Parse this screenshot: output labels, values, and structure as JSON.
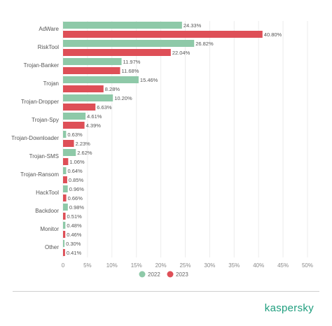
{
  "brand": "kaspersky",
  "chart_data": {
    "type": "bar",
    "orientation": "horizontal",
    "categories": [
      "AdWare",
      "RiskTool",
      "Trojan-Banker",
      "Trojan",
      "Trojan-Dropper",
      "Trojan-Spy",
      "Trojan-Downloader",
      "Trojan-SMS",
      "Trojan-Ransom",
      "HackTool",
      "Backdoor",
      "Monitor",
      "Other"
    ],
    "series": [
      {
        "name": "2022",
        "color": "#8ec9a8",
        "values": [
          24.33,
          26.82,
          11.97,
          15.46,
          10.2,
          4.61,
          0.63,
          2.62,
          0.64,
          0.96,
          0.98,
          0.48,
          0.3
        ],
        "labels": [
          "24.33%",
          "26.82%",
          "11.97%",
          "15.46%",
          "10.20%",
          "4.61%",
          "0.63%",
          "2.62%",
          "0.64%",
          "0.96%",
          "0.98%",
          "0.48%",
          "0.30%"
        ]
      },
      {
        "name": "2023",
        "color": "#de4f57",
        "values": [
          40.8,
          22.04,
          11.68,
          8.28,
          6.63,
          4.39,
          2.23,
          1.06,
          0.85,
          0.66,
          0.51,
          0.46,
          0.41
        ],
        "labels": [
          "40.80%",
          "22.04%",
          "11.68%",
          "8.28%",
          "6.63%",
          "4.39%",
          "2.23%",
          "1.06%",
          "0.85%",
          "0.66%",
          "0.51%",
          "0.46%",
          "0.41%"
        ]
      }
    ],
    "xlim": [
      0,
      50
    ],
    "x_ticks": [
      "0",
      "5%",
      "10%",
      "15%",
      "20%",
      "25%",
      "30%",
      "35%",
      "40%",
      "45%",
      "50%"
    ],
    "title": "",
    "xlabel": "",
    "ylabel": "",
    "grid": true,
    "legend_position": "bottom-center"
  }
}
